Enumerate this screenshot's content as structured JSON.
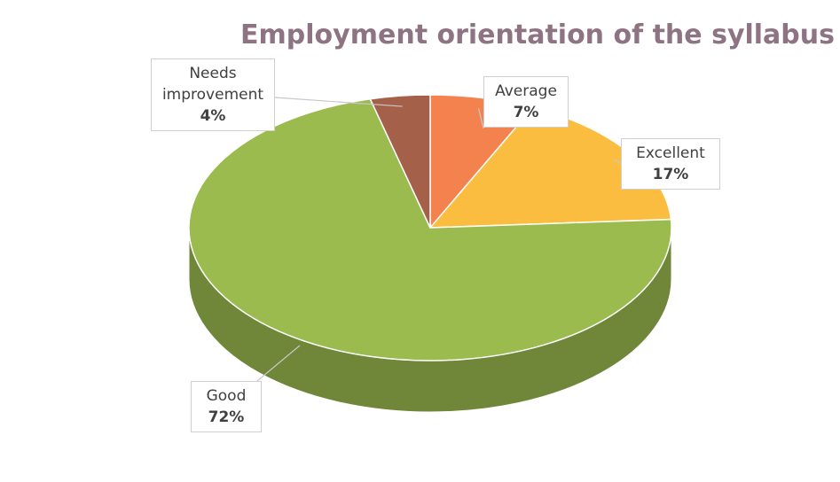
{
  "chart_data": {
    "type": "pie",
    "title": "Employment orientation of the syllabus",
    "categories": [
      "Average",
      "Excellent",
      "Good",
      "Needs improvement"
    ],
    "values": [
      7,
      17,
      72,
      4
    ],
    "value_labels": [
      "7%",
      "17%",
      "72%",
      "4%"
    ],
    "colors": [
      "#f4824f",
      "#fbbd3f",
      "#9bbb4f",
      "#a5604a"
    ]
  }
}
